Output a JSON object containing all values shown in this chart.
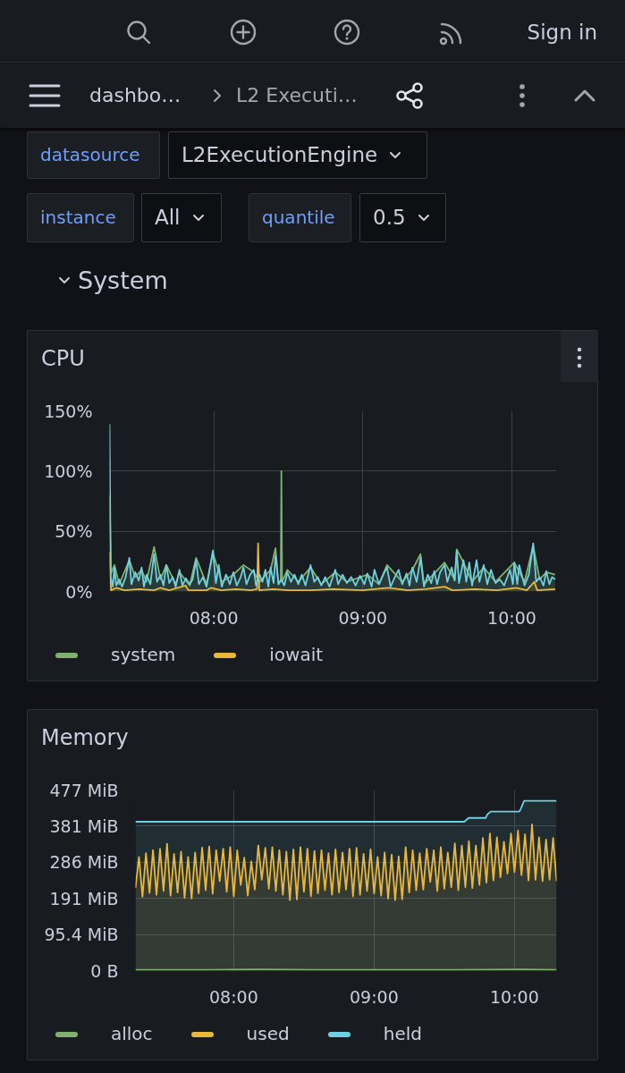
{
  "chart_data": [
    {
      "type": "other",
      "annotations": [
        "Sign in",
        "dashbo…",
        "L2 Executi…",
        "datasource",
        "L2ExecutionEngine",
        "instance",
        "All",
        "quantile",
        "0.5",
        "System"
      ]
    },
    {
      "type": "area",
      "title": "CPU",
      "xlim": [
        7.3,
        10.3
      ],
      "xticks": [
        {
          "value": 8,
          "label": "08:00"
        },
        {
          "value": 9,
          "label": "09:00"
        },
        {
          "value": 10,
          "label": "10:00"
        }
      ],
      "ylim": [
        0,
        150
      ],
      "yticks": [
        {
          "value": 0,
          "label": "0%"
        },
        {
          "value": 50,
          "label": "50%"
        },
        {
          "value": 100,
          "label": "100%"
        },
        {
          "value": 150,
          "label": "150%"
        }
      ],
      "grid": true,
      "legend": "bottom",
      "series": [
        {
          "name": "system",
          "color": "#7eb26d",
          "x": [
            7.3,
            7.31,
            7.333,
            7.365,
            7.433,
            7.472,
            7.515,
            7.548,
            7.599,
            7.642,
            7.681,
            7.744,
            7.769,
            7.838,
            7.881,
            7.951,
            7.994,
            8.053,
            8.131,
            8.199,
            8.268,
            8.307,
            8.381,
            8.414,
            8.434,
            8.449,
            8.453,
            8.458,
            8.493,
            8.567,
            8.649,
            8.721,
            8.815,
            8.893,
            9.03,
            9.108,
            9.162,
            9.264,
            9.332,
            9.387,
            9.41,
            9.548,
            9.616,
            9.63,
            9.675,
            9.733,
            9.811,
            9.89,
            10.016,
            10.085,
            10.143,
            10.186,
            10.231,
            10.29
          ],
          "values": [
            80,
            15,
            22,
            6,
            26,
            12,
            18,
            8,
            37,
            10,
            22,
            6,
            16,
            5,
            28,
            6,
            32,
            8,
            14,
            22,
            16,
            8,
            18,
            36,
            6,
            10,
            100,
            8,
            18,
            8,
            20,
            6,
            16,
            8,
            14,
            6,
            22,
            8,
            18,
            31,
            6,
            24,
            10,
            35,
            24,
            8,
            20,
            8,
            24,
            8,
            38,
            10,
            16,
            14
          ]
        },
        {
          "name": "iowait",
          "color": "#eab839",
          "x": [
            7.3,
            7.304,
            7.31,
            7.345,
            7.4,
            7.5,
            7.6,
            7.64,
            7.7,
            7.81,
            7.83,
            7.95,
            7.98,
            8.05,
            8.15,
            8.25,
            8.29,
            8.297,
            8.305,
            8.4,
            8.5,
            8.65,
            8.8,
            9,
            9.17,
            9.3,
            9.42,
            9.55,
            9.6,
            9.75,
            9.9,
            10.03,
            10.1,
            10.15,
            10.17,
            10.29
          ],
          "values": [
            33,
            20,
            1,
            3,
            1,
            2,
            1,
            3,
            1,
            5,
            1,
            1,
            3,
            1,
            2,
            1,
            2,
            40,
            1,
            2,
            1,
            1,
            2,
            1,
            3,
            1,
            2,
            4,
            1,
            2,
            1,
            3,
            1,
            8,
            1,
            2
          ]
        },
        {
          "color": "#6ed0e0",
          "x": [
            7.3,
            7.308,
            7.322,
            7.333,
            7.345,
            7.365,
            7.384,
            7.408,
            7.433,
            7.447,
            7.472,
            7.496,
            7.515,
            7.531,
            7.548,
            7.574,
            7.599,
            7.619,
            7.642,
            7.662,
            7.681,
            7.701,
            7.724,
            7.744,
            7.769,
            7.789,
            7.812,
            7.838,
            7.857,
            7.881,
            7.9,
            7.926,
            7.951,
            7.974,
            7.994,
            8.014,
            8.033,
            8.053,
            8.082,
            8.107,
            8.131,
            8.154,
            8.18,
            8.199,
            8.219,
            8.244,
            8.268,
            8.283,
            8.307,
            8.326,
            8.346,
            8.366,
            8.381,
            8.401,
            8.414,
            8.434,
            8.453,
            8.473,
            8.493,
            8.518,
            8.541,
            8.567,
            8.59,
            8.615,
            8.649,
            8.674,
            8.698,
            8.721,
            8.747,
            8.776,
            8.815,
            8.834,
            8.864,
            8.893,
            8.922,
            8.951,
            8.981,
            9.01,
            9.03,
            9.059,
            9.078,
            9.108,
            9.137,
            9.162,
            9.186,
            9.215,
            9.24,
            9.264,
            9.293,
            9.313,
            9.332,
            9.361,
            9.387,
            9.41,
            9.436,
            9.459,
            9.479,
            9.498,
            9.518,
            9.548,
            9.567,
            9.596,
            9.616,
            9.63,
            9.645,
            9.675,
            9.694,
            9.714,
            9.733,
            9.763,
            9.782,
            9.811,
            9.835,
            9.86,
            9.89,
            9.919,
            9.948,
            9.987,
            10.007,
            10.016,
            10.036,
            10.049,
            10.085,
            10.114,
            10.143,
            10.163,
            10.186,
            10.212,
            10.231,
            10.251,
            10.27,
            10.29
          ],
          "values": [
            139,
            12,
            4,
            20,
            5,
            10,
            4,
            12,
            28,
            6,
            16,
            9,
            20,
            4,
            14,
            6,
            31,
            8,
            14,
            5,
            22,
            7,
            12,
            4,
            18,
            5,
            11,
            6,
            10,
            26,
            6,
            12,
            4,
            20,
            34,
            7,
            22,
            4,
            14,
            6,
            16,
            5,
            12,
            20,
            6,
            14,
            18,
            5,
            14,
            8,
            18,
            4,
            20,
            7,
            30,
            6,
            10,
            5,
            16,
            8,
            14,
            6,
            14,
            5,
            22,
            8,
            12,
            5,
            12,
            4,
            18,
            6,
            14,
            7,
            12,
            5,
            13,
            6,
            15,
            4,
            18,
            6,
            14,
            20,
            4,
            12,
            18,
            6,
            15,
            5,
            20,
            8,
            28,
            4,
            14,
            7,
            17,
            6,
            16,
            22,
            8,
            20,
            9,
            34,
            7,
            26,
            8,
            24,
            5,
            26,
            8,
            22,
            6,
            18,
            7,
            10,
            5,
            18,
            6,
            24,
            6,
            22,
            5,
            14,
            40,
            8,
            12,
            5,
            17,
            6,
            12,
            10
          ]
        }
      ]
    },
    {
      "type": "area",
      "title": "Memory",
      "xlim": [
        7.3,
        10.3
      ],
      "xticks": [
        {
          "value": 8,
          "label": "08:00"
        },
        {
          "value": 9,
          "label": "09:00"
        },
        {
          "value": 10,
          "label": "10:00"
        }
      ],
      "ylim": [
        0,
        476.8
      ],
      "yticks": [
        {
          "value": 0,
          "label": "0 B"
        },
        {
          "value": 95.4,
          "label": "95.4 MiB"
        },
        {
          "value": 190.7,
          "label": "191 MiB"
        },
        {
          "value": 286.1,
          "label": "286 MiB"
        },
        {
          "value": 381.5,
          "label": "381 MiB"
        },
        {
          "value": 476.8,
          "label": "477 MiB"
        }
      ],
      "grid": true,
      "legend": "bottom",
      "series": [
        {
          "name": "alloc",
          "color": "#7eb26d",
          "x": [
            7.3,
            7.8,
            8.18,
            8.6,
            9.5,
            10.05,
            10.3
          ],
          "values": [
            2,
            2,
            3,
            2,
            2,
            3,
            2
          ]
        },
        {
          "name": "used",
          "color": "#eab839",
          "x": [
            7.3,
            7.325,
            7.35,
            7.375,
            7.4,
            7.425,
            7.45,
            7.475,
            7.5,
            7.525,
            7.55,
            7.575,
            7.6,
            7.625,
            7.65,
            7.675,
            7.7,
            7.725,
            7.75,
            7.775,
            7.8,
            7.825,
            7.85,
            7.875,
            7.9,
            7.925,
            7.95,
            7.975,
            8,
            8.025,
            8.05,
            8.075,
            8.1,
            8.125,
            8.15,
            8.175,
            8.2,
            8.225,
            8.25,
            8.275,
            8.3,
            8.325,
            8.35,
            8.375,
            8.4,
            8.425,
            8.45,
            8.475,
            8.5,
            8.525,
            8.55,
            8.575,
            8.6,
            8.625,
            8.65,
            8.675,
            8.7,
            8.725,
            8.75,
            8.775,
            8.8,
            8.825,
            8.85,
            8.875,
            8.9,
            8.925,
            8.95,
            8.975,
            9,
            9.025,
            9.05,
            9.075,
            9.1,
            9.125,
            9.15,
            9.175,
            9.2,
            9.225,
            9.25,
            9.275,
            9.3,
            9.325,
            9.35,
            9.375,
            9.4,
            9.425,
            9.45,
            9.475,
            9.5,
            9.525,
            9.55,
            9.575,
            9.6,
            9.625,
            9.65,
            9.675,
            9.7,
            9.725,
            9.75,
            9.775,
            9.8,
            9.825,
            9.85,
            9.875,
            9.9,
            9.925,
            9.95,
            9.975,
            10,
            10.025,
            10.05,
            10.075,
            10.1,
            10.125,
            10.15,
            10.175,
            10.2,
            10.225,
            10.25,
            10.275,
            10.3
          ],
          "values": [
            218,
            300,
            195,
            310,
            205,
            318,
            200,
            322,
            210,
            335,
            198,
            308,
            206,
            314,
            192,
            300,
            190,
            312,
            204,
            325,
            212,
            328,
            203,
            318,
            236,
            322,
            208,
            326,
            196,
            318,
            226,
            298,
            198,
            288,
            214,
            330,
            240,
            324,
            216,
            326,
            210,
            318,
            200,
            314,
            186,
            320,
            188,
            326,
            208,
            322,
            196,
            316,
            204,
            318,
            212,
            310,
            200,
            320,
            206,
            312,
            214,
            322,
            196,
            324,
            200,
            308,
            210,
            320,
            204,
            300,
            198,
            312,
            190,
            306,
            186,
            302,
            188,
            326,
            206,
            318,
            212,
            310,
            214,
            322,
            234,
            318,
            210,
            326,
            216,
            312,
            220,
            336,
            212,
            330,
            220,
            342,
            218,
            330,
            226,
            350,
            232,
            362,
            238,
            352,
            246,
            340,
            256,
            362,
            260,
            370,
            252,
            360,
            238,
            386,
            240,
            352,
            236,
            346,
            240,
            350,
            236
          ]
        },
        {
          "name": "held",
          "color": "#6ed0e0",
          "x": [
            7.3,
            9.642,
            9.673,
            9.795,
            9.806,
            9.831,
            10.035,
            10.046,
            10.069,
            10.3
          ],
          "values": [
            393,
            393,
            403,
            403,
            412,
            420,
            420,
            428,
            448,
            448
          ]
        }
      ]
    }
  ]
}
